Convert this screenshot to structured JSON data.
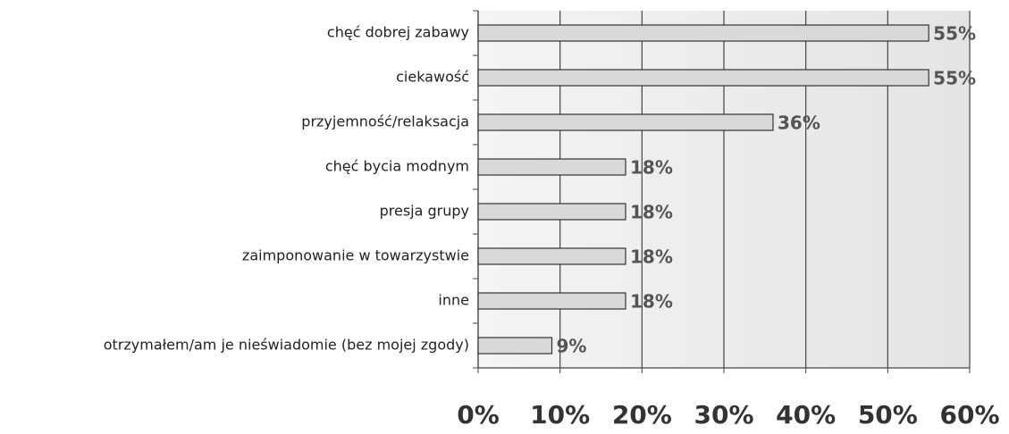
{
  "chart_data": {
    "type": "barh",
    "categories": [
      "chęć dobrej zabawy",
      "ciekawość",
      "przyjemność/relaksacja",
      "chęć bycia modnym",
      "presja grupy",
      "zaimponowanie w towarzystwie",
      "inne",
      "otrzymałem/am je nieświadomie (bez mojej zgody)"
    ],
    "values": [
      55,
      55,
      36,
      18,
      18,
      18,
      18,
      9
    ],
    "value_labels": [
      "55%",
      "55%",
      "36%",
      "18%",
      "18%",
      "18%",
      "18%",
      "9%"
    ],
    "color": "#d9d9d9",
    "xlim": [
      0,
      60
    ],
    "xticks": [
      {
        "value": 0,
        "label": "0%"
      },
      {
        "value": 10,
        "label": "10%"
      },
      {
        "value": 20,
        "label": "20%"
      },
      {
        "value": 30,
        "label": "30%"
      },
      {
        "value": 40,
        "label": "40%"
      },
      {
        "value": 50,
        "label": "50%"
      },
      {
        "value": 60,
        "label": "60%"
      }
    ],
    "grid": true
  }
}
